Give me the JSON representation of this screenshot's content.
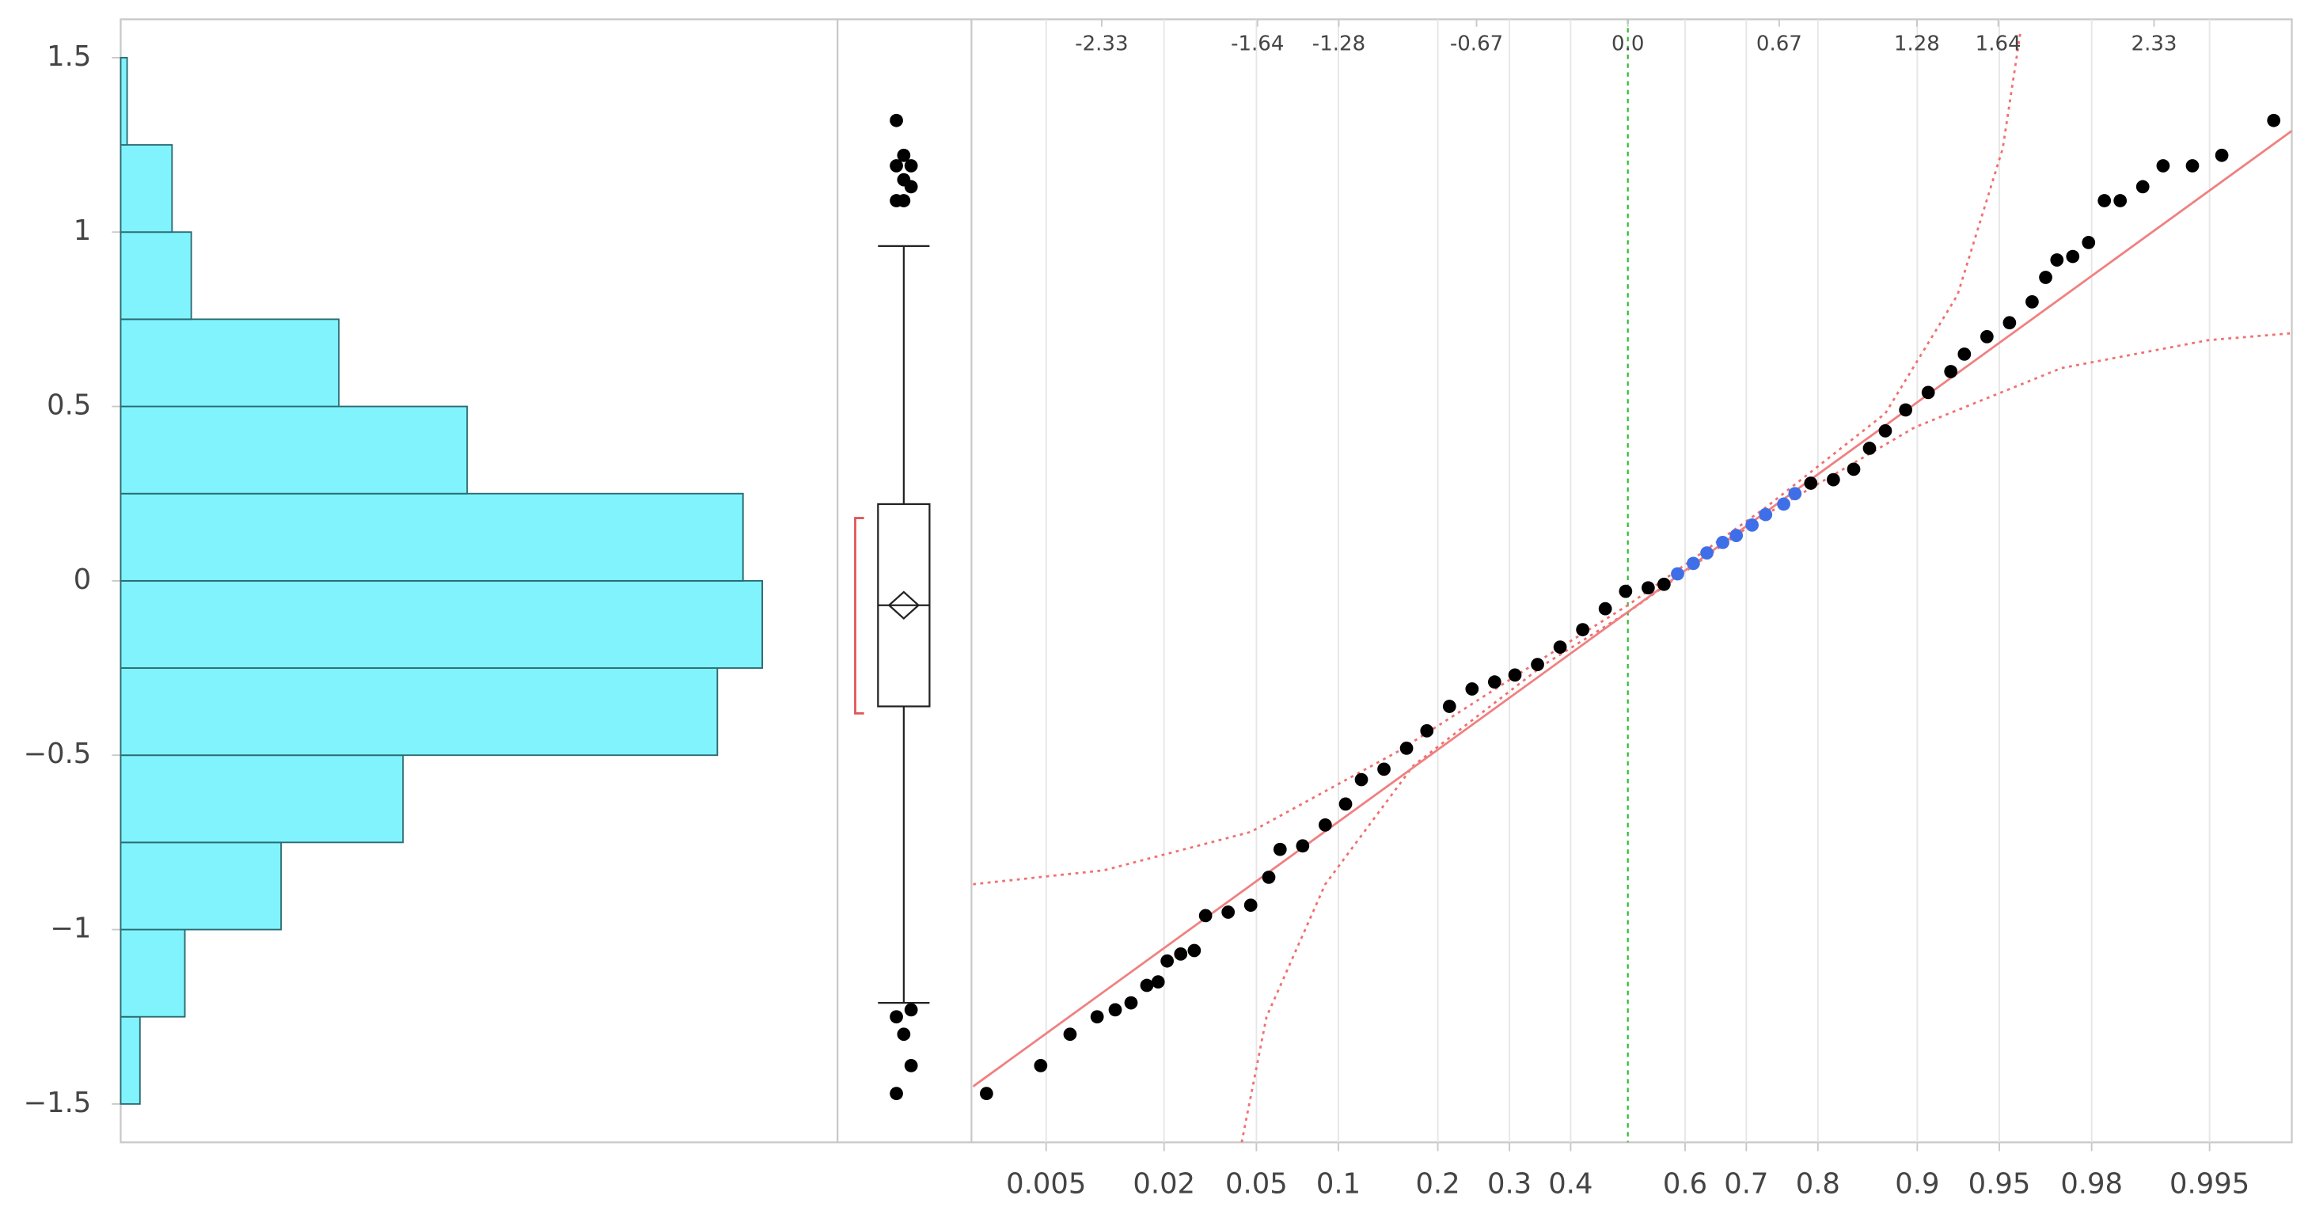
{
  "chart_data": [
    {
      "type": "histogram",
      "orientation": "horizontal",
      "color": "#80f3fc",
      "edge_color": "#2b6a72",
      "bins": [
        -1.5,
        -1.25,
        -1,
        -0.75,
        -0.5,
        -0.25,
        0,
        0.25,
        0.5,
        0.75,
        1,
        1.25,
        1.5
      ],
      "values": [
        3,
        10,
        25,
        44,
        93,
        100,
        97,
        54,
        34,
        11,
        8,
        1
      ],
      "ylim": [
        -1.61,
        1.61
      ],
      "yticks": [
        {
          "value": -1.5,
          "label": "−1.5"
        },
        {
          "value": -1,
          "label": "−1"
        },
        {
          "value": -0.5,
          "label": "−0.5"
        },
        0,
        0.5,
        1,
        1.5
      ]
    },
    {
      "type": "box",
      "ylim": [
        -1.61,
        1.61
      ],
      "whisker_low": -1.21,
      "q1": -0.36,
      "median": -0.07,
      "mean": -0.07,
      "q3": 0.22,
      "whisker_high": 0.96,
      "shortest_half": [
        -0.38,
        0.18
      ],
      "shortest_half_color": "#e05555",
      "outliers": [
        1.32,
        1.22,
        1.19,
        1.19,
        1.15,
        1.13,
        1.09,
        1.09,
        -1.23,
        -1.25,
        -1.3,
        -1.39,
        -1.47
      ]
    },
    {
      "type": "normal-quantile",
      "xlim": [
        -2.9,
        2.94
      ],
      "ylim": [
        -1.61,
        1.61
      ],
      "grid": true,
      "xticks": [
        -2.33,
        -1.64,
        -1.28,
        -0.67,
        {
          "value": 0,
          "label": "0.0"
        },
        0.67,
        1.28,
        1.64,
        2.33
      ],
      "prob_ticks": [
        0.005,
        0.02,
        0.05,
        0.1,
        0.2,
        0.3,
        0.4,
        0.6,
        0.7,
        0.8,
        0.9,
        0.95,
        0.98,
        0.995
      ],
      "center_color": "#33bb33",
      "series": [
        {
          "color": "#000000",
          "x": [
            -2.84,
            -2.6,
            -2.47,
            -2.35,
            -2.27,
            -2.2,
            -2.13,
            -2.08,
            -2.04,
            -1.98,
            -1.92,
            -1.87,
            -1.77,
            -1.67,
            -1.59,
            -1.54,
            -1.44,
            -1.34,
            -1.25,
            -1.18,
            -1.08,
            -0.98,
            -0.89,
            -0.79,
            -0.69,
            -0.59,
            -0.5,
            -0.4,
            -0.3,
            -0.2,
            -0.1,
            -0.01,
            0.09,
            0.16,
            0.81,
            0.91,
            1.0,
            1.07,
            1.14,
            1.23,
            1.33,
            1.43,
            1.49,
            1.59,
            1.69,
            1.79,
            1.85,
            1.9,
            1.97,
            2.04,
            2.11,
            2.18,
            2.28,
            2.37,
            2.5,
            2.63,
            2.86
          ],
          "values": [
            -1.47,
            -1.39,
            -1.3,
            -1.25,
            -1.23,
            -1.21,
            -1.16,
            -1.15,
            -1.09,
            -1.07,
            -1.06,
            -0.96,
            -0.95,
            -0.93,
            -0.85,
            -0.77,
            -0.76,
            -0.7,
            -0.64,
            -0.57,
            -0.54,
            -0.48,
            -0.43,
            -0.36,
            -0.31,
            -0.29,
            -0.27,
            -0.24,
            -0.19,
            -0.14,
            -0.08,
            -0.03,
            -0.02,
            -0.01,
            0.28,
            0.29,
            0.32,
            0.38,
            0.43,
            0.49,
            0.54,
            0.6,
            0.65,
            0.7,
            0.74,
            0.8,
            0.87,
            0.92,
            0.93,
            0.97,
            1.09,
            1.09,
            1.13,
            1.19,
            1.19,
            1.22,
            1.32
          ]
        },
        {
          "color": "#3f6fe8",
          "x": [
            0.22,
            0.29,
            0.35,
            0.42,
            0.48,
            0.55,
            0.61,
            0.69,
            0.74
          ],
          "values": [
            0.02,
            0.05,
            0.08,
            0.11,
            0.13,
            0.16,
            0.19,
            0.22,
            0.25
          ]
        }
      ],
      "fit_line": {
        "color": "#f08080",
        "x": [
          -2.9,
          2.94
        ],
        "values": [
          -1.45,
          1.29
        ]
      },
      "bands": [
        {
          "color": "#f07070",
          "x": [
            -2.9,
            -2.32,
            -1.67,
            -1.02,
            -0.37,
            0,
            0.61,
            1.14,
            1.46,
            1.66,
            1.74
          ],
          "values": [
            -0.87,
            -0.83,
            -0.72,
            -0.49,
            -0.22,
            -0.07,
            0.21,
            0.48,
            0.82,
            1.24,
            1.58
          ]
        },
        {
          "color": "#f07070",
          "x": [
            -1.71,
            -1.6,
            -1.34,
            -0.95,
            -0.37,
            0,
            0.61,
            1.27,
            1.92,
            2.57,
            2.94
          ],
          "values": [
            -1.61,
            -1.25,
            -0.87,
            -0.53,
            -0.24,
            -0.09,
            0.19,
            0.44,
            0.61,
            0.69,
            0.71
          ]
        }
      ]
    }
  ]
}
